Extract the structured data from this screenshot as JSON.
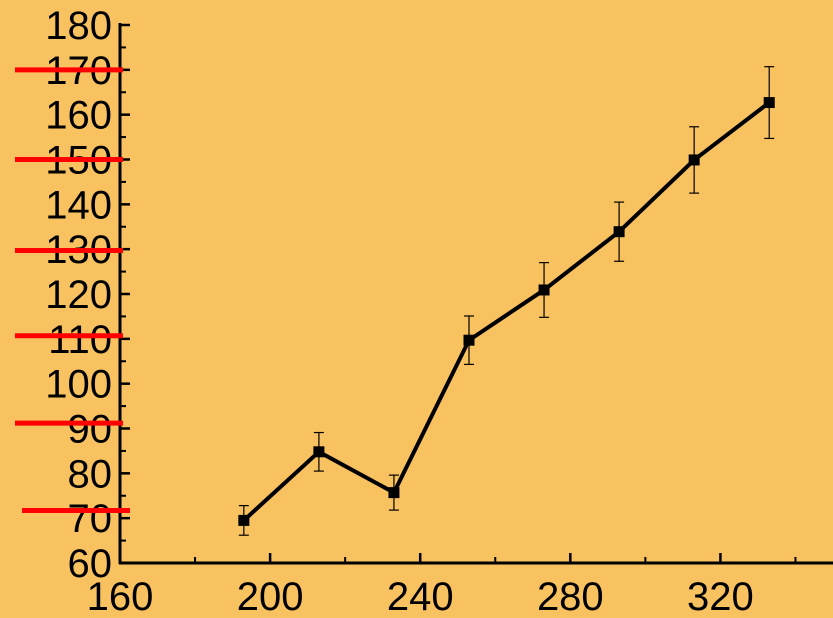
{
  "chart_data": {
    "type": "line",
    "title": "",
    "xlabel": "",
    "ylabel": "",
    "xlim": [
      160,
      350
    ],
    "ylim": [
      60,
      180
    ],
    "x_ticks": [
      160,
      200,
      240,
      280,
      320
    ],
    "y_ticks": [
      60,
      70,
      80,
      90,
      100,
      110,
      120,
      130,
      140,
      150,
      160,
      170,
      180
    ],
    "x_minor_step": 20,
    "y_minor_step": 5,
    "grid": false,
    "legend": "none",
    "series": [
      {
        "x": [
          193,
          213,
          233,
          253,
          273,
          293,
          313,
          333
        ],
        "y": [
          69.5,
          84.8,
          75.7,
          109.7,
          120.9,
          133.9,
          149.9,
          162.7
        ],
        "err": [
          3.3,
          4.3,
          3.9,
          5.4,
          6.1,
          6.6,
          7.4,
          8.0
        ],
        "color": "#000000"
      }
    ],
    "annotation_lines": {
      "color": "#FF0000",
      "values": [
        170,
        150,
        129.7,
        110.7,
        91.2,
        71.7
      ]
    },
    "background": "#F9C261"
  }
}
